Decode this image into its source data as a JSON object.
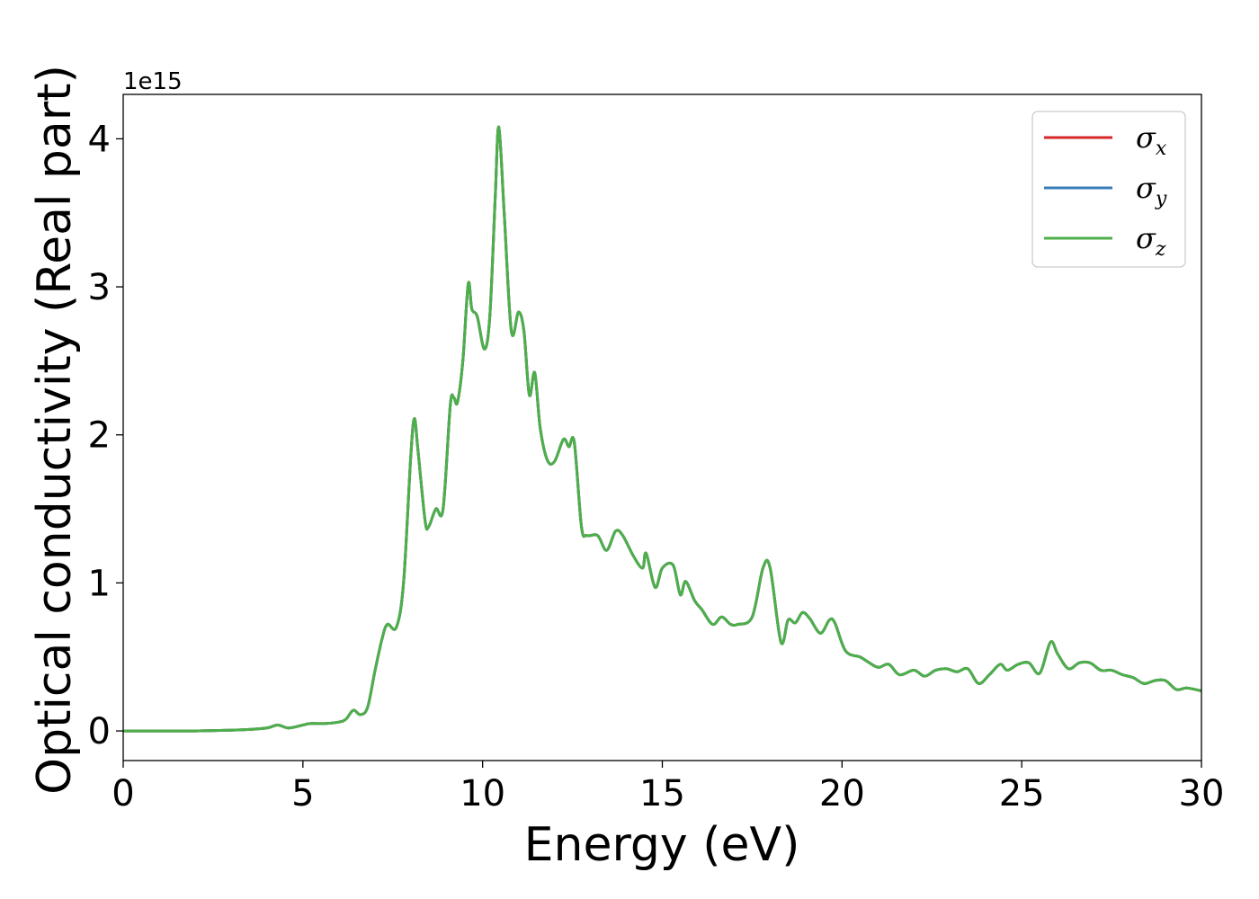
{
  "chart_data": {
    "type": "line",
    "title": "",
    "xlabel": "Energy (eV)",
    "ylabel": "Optical conductivity (Real part)",
    "y_offset_text": "1e15",
    "y_scale": 1000000000000000.0,
    "xlim": [
      0,
      30
    ],
    "ylim": [
      -0.2,
      4.3
    ],
    "x_ticks": [
      0,
      5,
      10,
      15,
      20,
      25,
      30
    ],
    "x_tick_labels": [
      "0",
      "5",
      "10",
      "15",
      "20",
      "25",
      "30"
    ],
    "y_ticks": [
      0,
      1,
      2,
      3,
      4
    ],
    "y_tick_labels": [
      "0",
      "1",
      "2",
      "3",
      "4"
    ],
    "grid": false,
    "legend_position": "top-right",
    "x": [
      0,
      1,
      2,
      3,
      3.5,
      4,
      4.3,
      4.6,
      5,
      5.2,
      5.6,
      6,
      6.2,
      6.4,
      6.6,
      6.8,
      7,
      7.2,
      7.35,
      7.6,
      7.8,
      8,
      8.1,
      8.2,
      8.4,
      8.5,
      8.7,
      8.9,
      9.1,
      9.2,
      9.3,
      9.45,
      9.6,
      9.7,
      9.85,
      10.05,
      10.2,
      10.35,
      10.45,
      10.6,
      10.8,
      11,
      11.15,
      11.3,
      11.45,
      11.6,
      11.8,
      12,
      12.25,
      12.4,
      12.55,
      12.75,
      12.9,
      13.2,
      13.45,
      13.7,
      13.9,
      14.2,
      14.45,
      14.55,
      14.8,
      15,
      15.3,
      15.5,
      15.65,
      15.9,
      16.1,
      16.4,
      16.65,
      16.9,
      17.1,
      17.5,
      17.8,
      18,
      18.3,
      18.5,
      18.7,
      18.9,
      19.1,
      19.4,
      19.65,
      19.8,
      20.1,
      20.5,
      20.7,
      21,
      21.3,
      21.6,
      22,
      22.3,
      22.6,
      22.9,
      23.2,
      23.5,
      23.8,
      24.1,
      24.4,
      24.6,
      24.9,
      25.2,
      25.5,
      25.8,
      26,
      26.3,
      26.6,
      26.9,
      27.2,
      27.5,
      27.8,
      28.1,
      28.4,
      28.7,
      29,
      29.3,
      29.6,
      30
    ],
    "series": [
      {
        "name": "σx",
        "color": "#d62728",
        "y": [
          0,
          0,
          0,
          0.005,
          0.01,
          0.02,
          0.04,
          0.02,
          0.04,
          0.05,
          0.05,
          0.06,
          0.08,
          0.14,
          0.11,
          0.16,
          0.4,
          0.62,
          0.72,
          0.7,
          1.0,
          1.85,
          2.11,
          1.9,
          1.42,
          1.38,
          1.5,
          1.5,
          2.2,
          2.25,
          2.22,
          2.5,
          3.02,
          2.85,
          2.8,
          2.58,
          2.8,
          3.6,
          4.08,
          3.5,
          2.7,
          2.83,
          2.7,
          2.27,
          2.42,
          2.05,
          1.83,
          1.82,
          1.97,
          1.92,
          1.95,
          1.38,
          1.32,
          1.32,
          1.22,
          1.35,
          1.32,
          1.18,
          1.1,
          1.2,
          0.97,
          1.1,
          1.12,
          0.92,
          1.01,
          0.88,
          0.82,
          0.72,
          0.77,
          0.72,
          0.72,
          0.77,
          1.1,
          1.1,
          0.6,
          0.75,
          0.73,
          0.8,
          0.76,
          0.66,
          0.75,
          0.73,
          0.54,
          0.5,
          0.47,
          0.43,
          0.45,
          0.38,
          0.41,
          0.37,
          0.41,
          0.42,
          0.4,
          0.42,
          0.32,
          0.38,
          0.45,
          0.41,
          0.45,
          0.46,
          0.39,
          0.6,
          0.52,
          0.42,
          0.46,
          0.46,
          0.41,
          0.41,
          0.38,
          0.36,
          0.32,
          0.34,
          0.34,
          0.28,
          0.29,
          0.27
        ]
      },
      {
        "name": "σy",
        "color": "#377eb8",
        "y": [
          0,
          0,
          0,
          0.005,
          0.01,
          0.02,
          0.04,
          0.02,
          0.04,
          0.05,
          0.05,
          0.06,
          0.08,
          0.14,
          0.11,
          0.16,
          0.4,
          0.62,
          0.72,
          0.7,
          1.0,
          1.85,
          2.11,
          1.9,
          1.42,
          1.38,
          1.5,
          1.5,
          2.2,
          2.25,
          2.22,
          2.5,
          3.02,
          2.85,
          2.8,
          2.58,
          2.8,
          3.6,
          4.08,
          3.5,
          2.7,
          2.83,
          2.7,
          2.27,
          2.42,
          2.05,
          1.83,
          1.82,
          1.97,
          1.92,
          1.95,
          1.38,
          1.32,
          1.32,
          1.22,
          1.35,
          1.32,
          1.18,
          1.1,
          1.2,
          0.97,
          1.1,
          1.12,
          0.92,
          1.01,
          0.88,
          0.82,
          0.72,
          0.77,
          0.72,
          0.72,
          0.77,
          1.1,
          1.1,
          0.6,
          0.75,
          0.73,
          0.8,
          0.76,
          0.66,
          0.75,
          0.73,
          0.54,
          0.5,
          0.47,
          0.43,
          0.45,
          0.38,
          0.41,
          0.37,
          0.41,
          0.42,
          0.4,
          0.42,
          0.32,
          0.38,
          0.45,
          0.41,
          0.45,
          0.46,
          0.39,
          0.6,
          0.52,
          0.42,
          0.46,
          0.46,
          0.41,
          0.41,
          0.38,
          0.36,
          0.32,
          0.34,
          0.34,
          0.28,
          0.29,
          0.27
        ]
      },
      {
        "name": "σz",
        "color": "#4daf4a",
        "y": [
          0,
          0,
          0,
          0.005,
          0.01,
          0.02,
          0.04,
          0.02,
          0.04,
          0.05,
          0.05,
          0.06,
          0.08,
          0.14,
          0.11,
          0.16,
          0.4,
          0.62,
          0.72,
          0.7,
          1.0,
          1.85,
          2.11,
          1.9,
          1.42,
          1.38,
          1.5,
          1.5,
          2.2,
          2.25,
          2.22,
          2.5,
          3.02,
          2.85,
          2.8,
          2.58,
          2.8,
          3.6,
          4.08,
          3.5,
          2.7,
          2.83,
          2.7,
          2.27,
          2.42,
          2.05,
          1.83,
          1.82,
          1.97,
          1.92,
          1.95,
          1.38,
          1.32,
          1.32,
          1.22,
          1.35,
          1.32,
          1.18,
          1.1,
          1.2,
          0.97,
          1.1,
          1.12,
          0.92,
          1.01,
          0.88,
          0.82,
          0.72,
          0.77,
          0.72,
          0.72,
          0.77,
          1.1,
          1.1,
          0.6,
          0.75,
          0.73,
          0.8,
          0.76,
          0.66,
          0.75,
          0.73,
          0.54,
          0.5,
          0.47,
          0.43,
          0.45,
          0.38,
          0.41,
          0.37,
          0.41,
          0.42,
          0.4,
          0.42,
          0.32,
          0.38,
          0.45,
          0.41,
          0.45,
          0.46,
          0.39,
          0.6,
          0.52,
          0.42,
          0.46,
          0.46,
          0.41,
          0.41,
          0.38,
          0.36,
          0.32,
          0.34,
          0.34,
          0.28,
          0.29,
          0.27
        ]
      }
    ],
    "legend": [
      {
        "symbol": "σ",
        "subscript": "x"
      },
      {
        "symbol": "σ",
        "subscript": "y"
      },
      {
        "symbol": "σ",
        "subscript": "z"
      }
    ]
  }
}
